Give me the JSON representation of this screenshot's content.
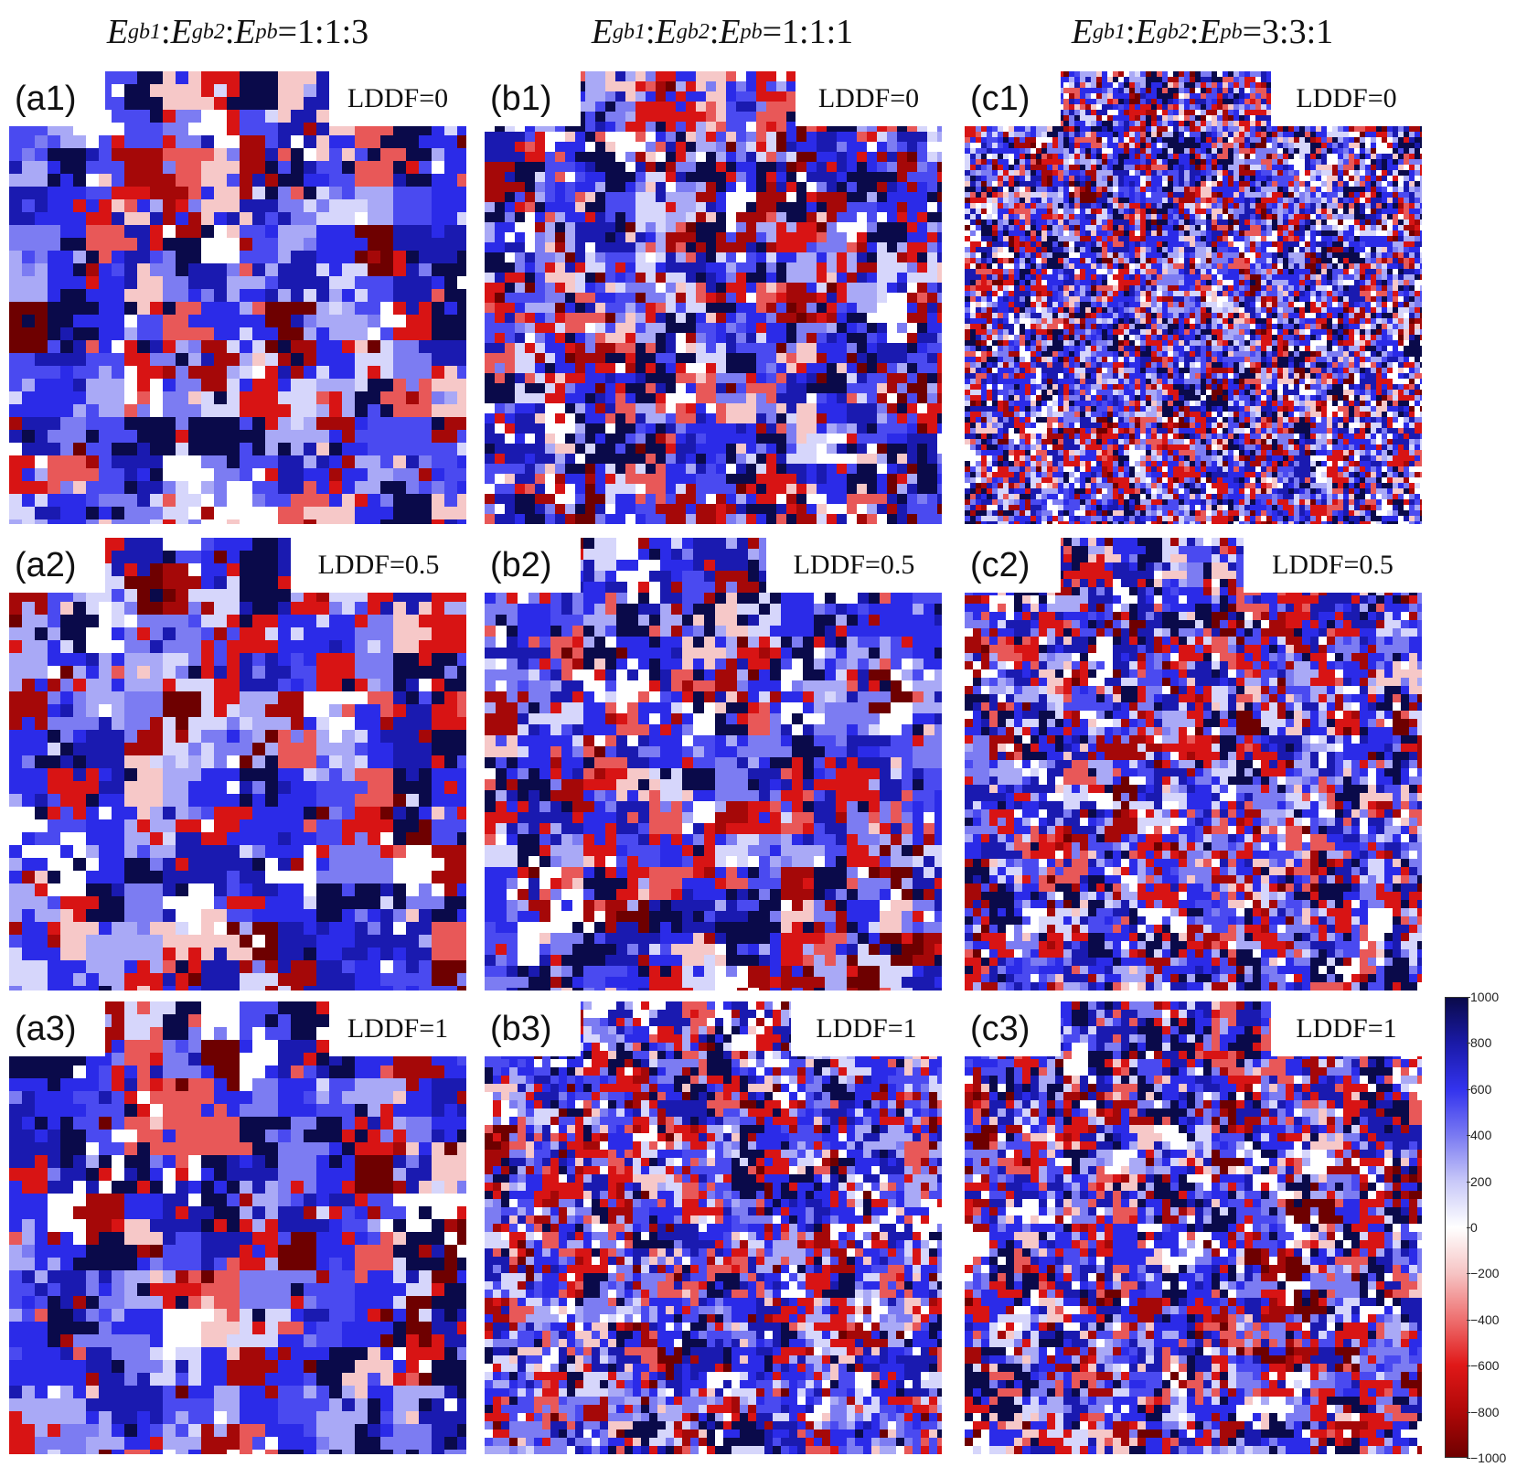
{
  "columns": [
    {
      "E1": "E",
      "s1": "gb1",
      "E2": "E",
      "s2": "gb2",
      "E3": "E",
      "s3": "pb",
      "ratio": "=1:1:3"
    },
    {
      "E1": "E",
      "s1": "gb1",
      "E2": "E",
      "s2": "gb2",
      "E3": "E",
      "s3": "pb",
      "ratio": "=1:1:1"
    },
    {
      "E1": "E",
      "s1": "gb1",
      "E2": "E",
      "s2": "gb2",
      "E3": "E",
      "s3": "pb",
      "ratio": "=3:3:1"
    }
  ],
  "panels": [
    {
      "label": "(a1)",
      "lddf": "LDDF=0"
    },
    {
      "label": "(b1)",
      "lddf": "LDDF=0"
    },
    {
      "label": "(c1)",
      "lddf": "LDDF=0"
    },
    {
      "label": "(a2)",
      "lddf": "LDDF=0.5"
    },
    {
      "label": "(b2)",
      "lddf": "LDDF=0.5"
    },
    {
      "label": "(c2)",
      "lddf": "LDDF=0.5"
    },
    {
      "label": "(a3)",
      "lddf": "LDDF=1"
    },
    {
      "label": "(b3)",
      "lddf": "LDDF=1"
    },
    {
      "label": "(c3)",
      "lddf": "LDDF=1"
    }
  ],
  "colorbar": {
    "ticks": [
      "1000",
      "800",
      "600",
      "400",
      "200",
      "0",
      "−200",
      "−400",
      "−600",
      "−800",
      "−1000"
    ],
    "colors": [
      "#0a0a4a",
      "#1a1aa8",
      "#3333ee",
      "#7a7af2",
      "#c8c8f8",
      "#ffffff",
      "#f6c4c4",
      "#ee7070",
      "#e01818",
      "#b00808",
      "#6e0000"
    ]
  }
}
